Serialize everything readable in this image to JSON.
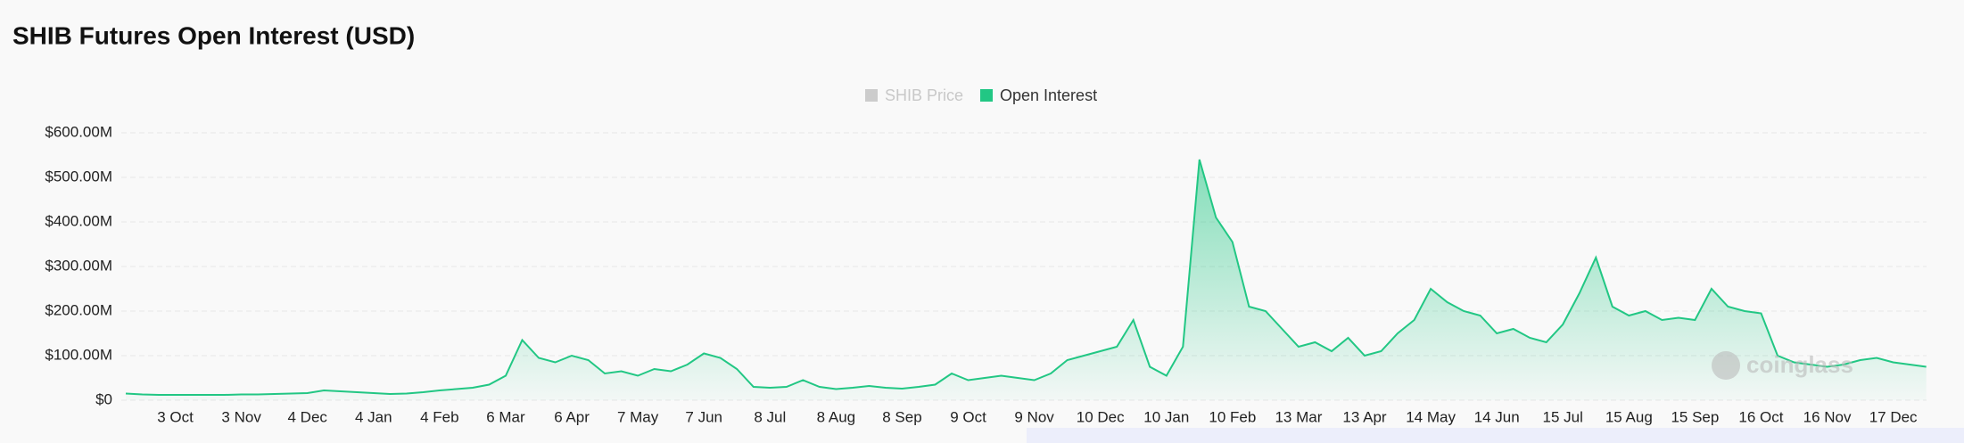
{
  "chart_data": {
    "type": "area",
    "title": "SHIB Futures Open Interest (USD)",
    "watermark": "coinglass",
    "inactive_legend": {
      "name": "SHIB Price",
      "color": "#cccccc"
    },
    "legend_position": "top",
    "grid": true,
    "ylim": [
      0,
      600
    ],
    "yticks": [
      {
        "value": 0,
        "label": "$0"
      },
      {
        "value": 100,
        "label": "$100.00M"
      },
      {
        "value": 200,
        "label": "$200.00M"
      },
      {
        "value": 300,
        "label": "$300.00M"
      },
      {
        "value": 400,
        "label": "$400.00M"
      },
      {
        "value": 500,
        "label": "$500.00M"
      },
      {
        "value": 600,
        "label": "$600.00M"
      }
    ],
    "categories": [
      null,
      null,
      null,
      "3 Oct",
      null,
      null,
      null,
      "3 Nov",
      null,
      null,
      null,
      "4 Dec",
      null,
      null,
      null,
      "4 Jan",
      null,
      null,
      null,
      "4 Feb",
      null,
      null,
      null,
      "6 Mar",
      null,
      null,
      null,
      "6 Apr",
      null,
      null,
      null,
      "7 May",
      null,
      null,
      null,
      "7 Jun",
      null,
      null,
      null,
      "8 Jul",
      null,
      null,
      null,
      "8 Aug",
      null,
      null,
      null,
      "8 Sep",
      null,
      null,
      null,
      "9 Oct",
      null,
      null,
      null,
      "9 Nov",
      null,
      null,
      null,
      "10 Dec",
      null,
      null,
      null,
      "10 Jan",
      null,
      null,
      null,
      "10 Feb",
      null,
      null,
      null,
      "13 Mar",
      null,
      null,
      null,
      "13 Apr",
      null,
      null,
      null,
      "14 May",
      null,
      null,
      null,
      "14 Jun",
      null,
      null,
      null,
      "15 Jul",
      null,
      null,
      null,
      "15 Aug",
      null,
      null,
      null,
      "15 Sep",
      null,
      null,
      null,
      "16 Oct",
      null,
      null,
      null,
      "16 Nov",
      null,
      null,
      null,
      "17 Dec",
      null,
      null
    ],
    "series": [
      {
        "name": "Open Interest",
        "color": "#22c784",
        "values": [
          15,
          13,
          12,
          12,
          12,
          12,
          12,
          13,
          13,
          14,
          15,
          16,
          22,
          20,
          18,
          16,
          14,
          15,
          18,
          22,
          25,
          28,
          35,
          55,
          135,
          95,
          85,
          100,
          90,
          60,
          65,
          55,
          70,
          65,
          80,
          105,
          95,
          70,
          30,
          28,
          30,
          45,
          30,
          25,
          28,
          32,
          28,
          26,
          30,
          35,
          60,
          45,
          50,
          55,
          50,
          45,
          60,
          90,
          100,
          110,
          120,
          180,
          75,
          55,
          120,
          540,
          410,
          355,
          210,
          200,
          160,
          120,
          130,
          110,
          140,
          100,
          110,
          150,
          180,
          250,
          220,
          200,
          190,
          150,
          160,
          140,
          130,
          170,
          240,
          320,
          210,
          190,
          200,
          180,
          185,
          180,
          250,
          210,
          200,
          195,
          100,
          85,
          80,
          75,
          80,
          90,
          95,
          85,
          80,
          75
        ]
      }
    ]
  }
}
